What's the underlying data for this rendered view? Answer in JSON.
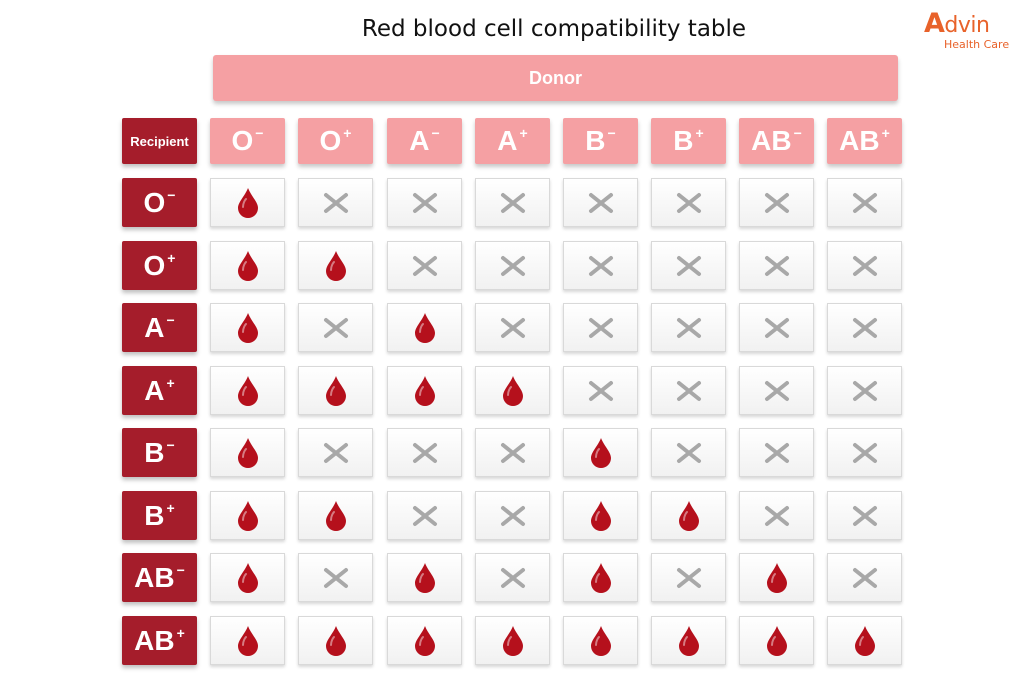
{
  "title": "Red blood cell compatibility table",
  "logo": {
    "brand_first": "A",
    "brand_rest": "dvin",
    "subtitle": "Health Care"
  },
  "donor_label": "Donor",
  "recipient_label": "Recipient",
  "blood_types": [
    {
      "letter": "O",
      "sign": "−"
    },
    {
      "letter": "O",
      "sign": "+"
    },
    {
      "letter": "A",
      "sign": "−"
    },
    {
      "letter": "A",
      "sign": "+"
    },
    {
      "letter": "B",
      "sign": "−"
    },
    {
      "letter": "B",
      "sign": "+"
    },
    {
      "letter": "AB",
      "sign": "−"
    },
    {
      "letter": "AB",
      "sign": "+"
    }
  ],
  "chart_data": {
    "type": "table",
    "title": "Red blood cell compatibility table",
    "columns_label": "Donor",
    "rows_label": "Recipient",
    "columns": [
      "O-",
      "O+",
      "A-",
      "A+",
      "B-",
      "B+",
      "AB-",
      "AB+"
    ],
    "rows": [
      "O-",
      "O+",
      "A-",
      "A+",
      "B-",
      "B+",
      "AB-",
      "AB+"
    ],
    "compatible": [
      [
        1,
        0,
        0,
        0,
        0,
        0,
        0,
        0
      ],
      [
        1,
        1,
        0,
        0,
        0,
        0,
        0,
        0
      ],
      [
        1,
        0,
        1,
        0,
        0,
        0,
        0,
        0
      ],
      [
        1,
        1,
        1,
        1,
        0,
        0,
        0,
        0
      ],
      [
        1,
        0,
        0,
        0,
        1,
        0,
        0,
        0
      ],
      [
        1,
        1,
        0,
        0,
        1,
        1,
        0,
        0
      ],
      [
        1,
        0,
        1,
        0,
        1,
        0,
        1,
        0
      ],
      [
        1,
        1,
        1,
        1,
        1,
        1,
        1,
        1
      ]
    ],
    "compatible_icon": "blood-drop-icon",
    "incompatible_icon": "cross-icon",
    "colors": {
      "header": "#f5a0a3",
      "row_header": "#a51d2b",
      "drop": "#b5101c",
      "cross": "#a8a8a8"
    }
  }
}
